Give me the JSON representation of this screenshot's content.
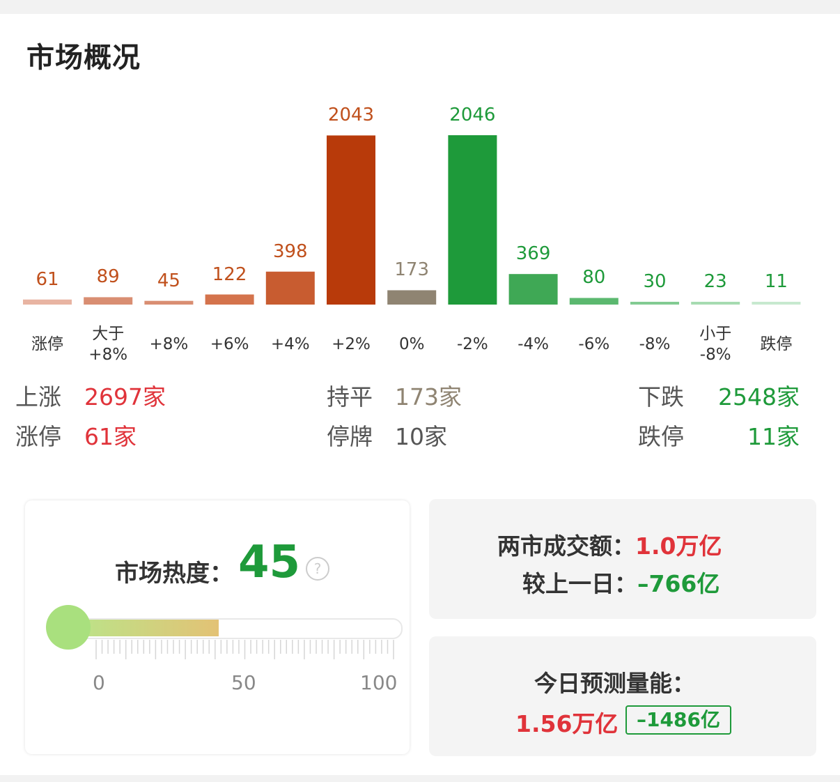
{
  "title": "市场概况",
  "chart_data": {
    "type": "bar",
    "categories": [
      "涨停",
      "大于\n+8%",
      "+8%",
      "+6%",
      "+4%",
      "+2%",
      "0%",
      "-2%",
      "-4%",
      "-6%",
      "-8%",
      "小于\n-8%",
      "跌停"
    ],
    "values": [
      61,
      89,
      45,
      122,
      398,
      2043,
      173,
      2046,
      369,
      80,
      30,
      23,
      11
    ],
    "bar_colors": [
      "#e8b4a2",
      "#d98e72",
      "#d98e72",
      "#d4734c",
      "#c85c30",
      "#b83a0a",
      "#8f8472",
      "#1e9a3a",
      "#3fa855",
      "#5bb86f",
      "#82cb92",
      "#a6dbb1",
      "#c7e9cf"
    ],
    "label_colors": [
      "#c0501c",
      "#c0501c",
      "#c0501c",
      "#c0501c",
      "#c0501c",
      "#c0501c",
      "#8f8472",
      "#1e9a3a",
      "#1e9a3a",
      "#1e9a3a",
      "#1e9a3a",
      "#1e9a3a",
      "#1e9a3a"
    ]
  },
  "stats": {
    "up_label": "上涨",
    "up_value": "2697家",
    "flat_label": "持平",
    "flat_value": "173家",
    "down_label": "下跌",
    "down_value": "2548家",
    "limit_up_label": "涨停",
    "limit_up_value": "61家",
    "suspended_label": "停牌",
    "suspended_value": "10家",
    "limit_down_label": "跌停",
    "limit_down_value": "11家"
  },
  "heat": {
    "label": "市场热度：",
    "value": "45",
    "level": 45,
    "scale": [
      "0",
      "50",
      "100"
    ],
    "help": "?"
  },
  "turnover": {
    "label": "两市成交额：",
    "value": "1.0万亿",
    "compare_label": "较上一日：",
    "compare_value": "–766亿"
  },
  "forecast": {
    "label": "今日预测量能：",
    "value": "1.56万亿",
    "diff": "–1486亿"
  }
}
